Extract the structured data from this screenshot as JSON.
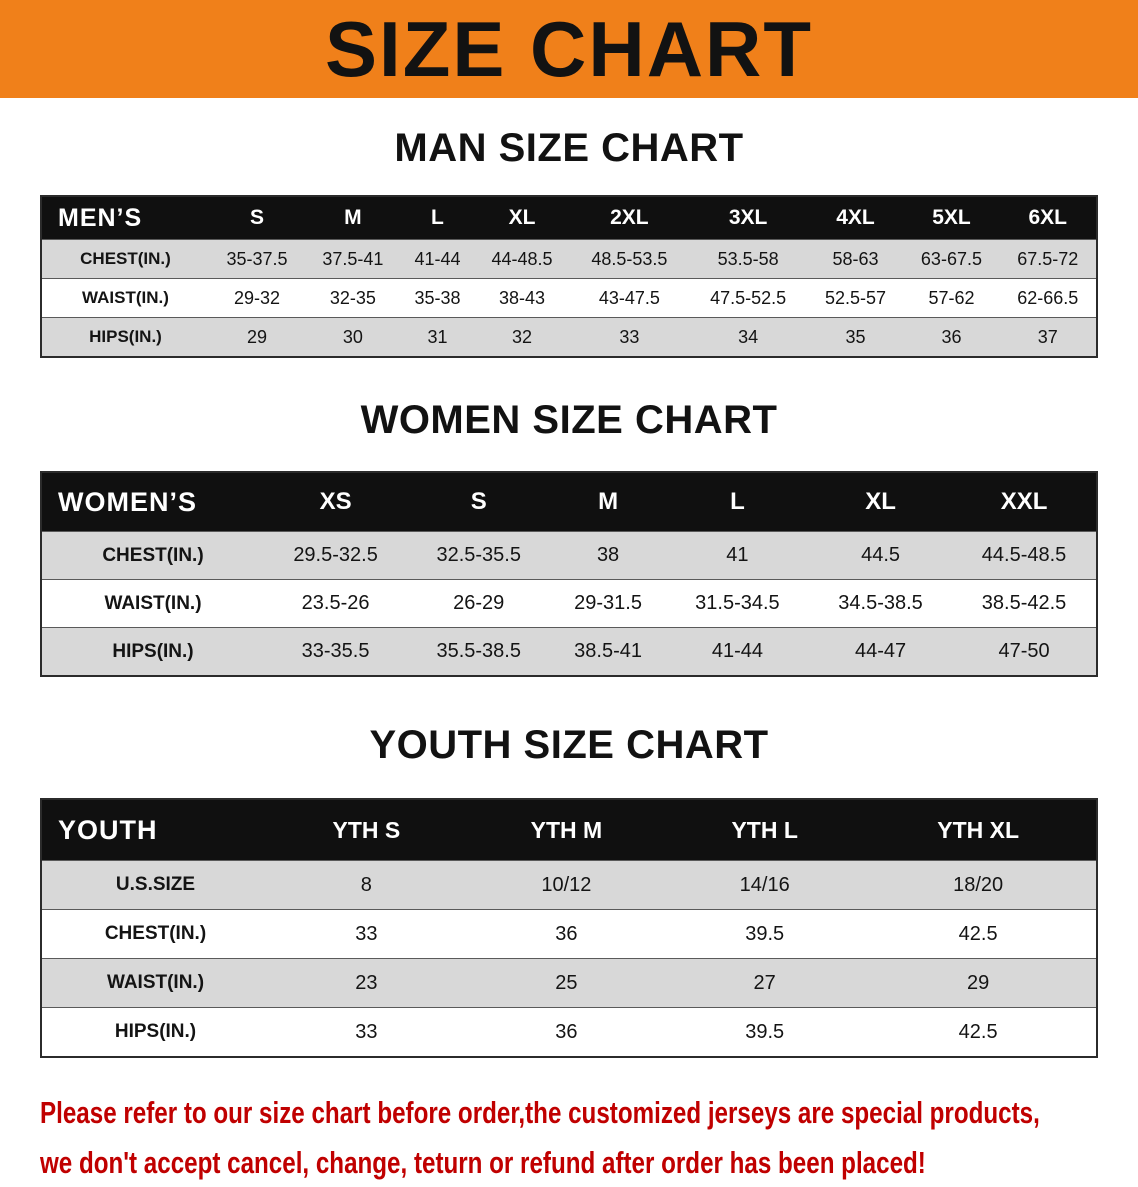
{
  "banner": {
    "title": "SIZE CHART"
  },
  "colors": {
    "banner_bg": "#F0801A",
    "header_bg": "#101010",
    "shaded_row": "#D8D8D8",
    "disclaimer_red": "#C00000"
  },
  "sections": {
    "men": {
      "heading": "MAN SIZE CHART",
      "table": {
        "header": [
          "MEN’S",
          "S",
          "M",
          "L",
          "XL",
          "2XL",
          "3XL",
          "4XL",
          "5XL",
          "6XL"
        ],
        "rows": [
          [
            "CHEST(IN.)",
            "35-37.5",
            "37.5-41",
            "41-44",
            "44-48.5",
            "48.5-53.5",
            "53.5-58",
            "58-63",
            "63-67.5",
            "67.5-72"
          ],
          [
            "WAIST(IN.)",
            "29-32",
            "32-35",
            "35-38",
            "38-43",
            "43-47.5",
            "47.5-52.5",
            "52.5-57",
            "57-62",
            "62-66.5"
          ],
          [
            "HIPS(IN.)",
            "29",
            "30",
            "31",
            "32",
            "33",
            "34",
            "35",
            "36",
            "37"
          ]
        ]
      }
    },
    "women": {
      "heading": "WOMEN SIZE CHART",
      "table": {
        "header": [
          "WOMEN’S",
          "XS",
          "S",
          "M",
          "L",
          "XL",
          "XXL"
        ],
        "rows": [
          [
            "CHEST(IN.)",
            "29.5-32.5",
            "32.5-35.5",
            "38",
            "41",
            "44.5",
            "44.5-48.5"
          ],
          [
            "WAIST(IN.)",
            "23.5-26",
            "26-29",
            "29-31.5",
            "31.5-34.5",
            "34.5-38.5",
            "38.5-42.5"
          ],
          [
            "HIPS(IN.)",
            "33-35.5",
            "35.5-38.5",
            "38.5-41",
            "41-44",
            "44-47",
            "47-50"
          ]
        ]
      }
    },
    "youth": {
      "heading": "YOUTH SIZE CHART",
      "table": {
        "header": [
          "YOUTH",
          "YTH S",
          "YTH M",
          "YTH L",
          "YTH XL"
        ],
        "rows": [
          [
            "U.S.SIZE",
            "8",
            "10/12",
            "14/16",
            "18/20"
          ],
          [
            "CHEST(IN.)",
            "33",
            "36",
            "39.5",
            "42.5"
          ],
          [
            "WAIST(IN.)",
            "23",
            "25",
            "27",
            "29"
          ],
          [
            "HIPS(IN.)",
            "33",
            "36",
            "39.5",
            "42.5"
          ]
        ]
      }
    }
  },
  "disclaimer": {
    "line1": "Please refer to our size chart before order,the customized jerseys are special products,",
    "line2": "we don't accept cancel, change, teturn or refund after order has been placed!"
  }
}
